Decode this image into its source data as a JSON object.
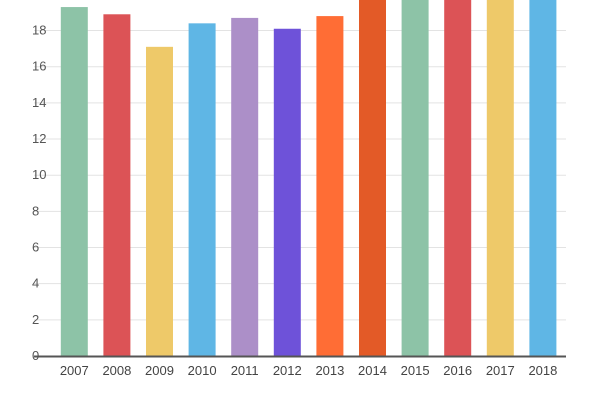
{
  "chart_data": {
    "type": "bar",
    "title": "",
    "xlabel": "",
    "ylabel": "",
    "ylim": [
      0,
      19.5
    ],
    "yticks": [
      0,
      2,
      4,
      6,
      8,
      10,
      12,
      14,
      16,
      18
    ],
    "grid": true,
    "legend": "none",
    "categories": [
      "2007",
      "2008",
      "2009",
      "2010",
      "2011",
      "2012",
      "2013",
      "2014",
      "2015",
      "2016",
      "2017",
      "2018"
    ],
    "values": [
      19.3,
      18.9,
      17.1,
      18.4,
      18.7,
      18.1,
      18.8,
      19.8,
      19.9,
      19.9,
      19.9,
      19.9
    ],
    "colors": [
      "#8dc3a7",
      "#dc5356",
      "#eec969",
      "#5fb6e5",
      "#ac8fc8",
      "#6e52d9",
      "#ff6d35",
      "#e35a27",
      "#8dc3a7",
      "#dc5356",
      "#eec969",
      "#5fb6e5"
    ]
  }
}
